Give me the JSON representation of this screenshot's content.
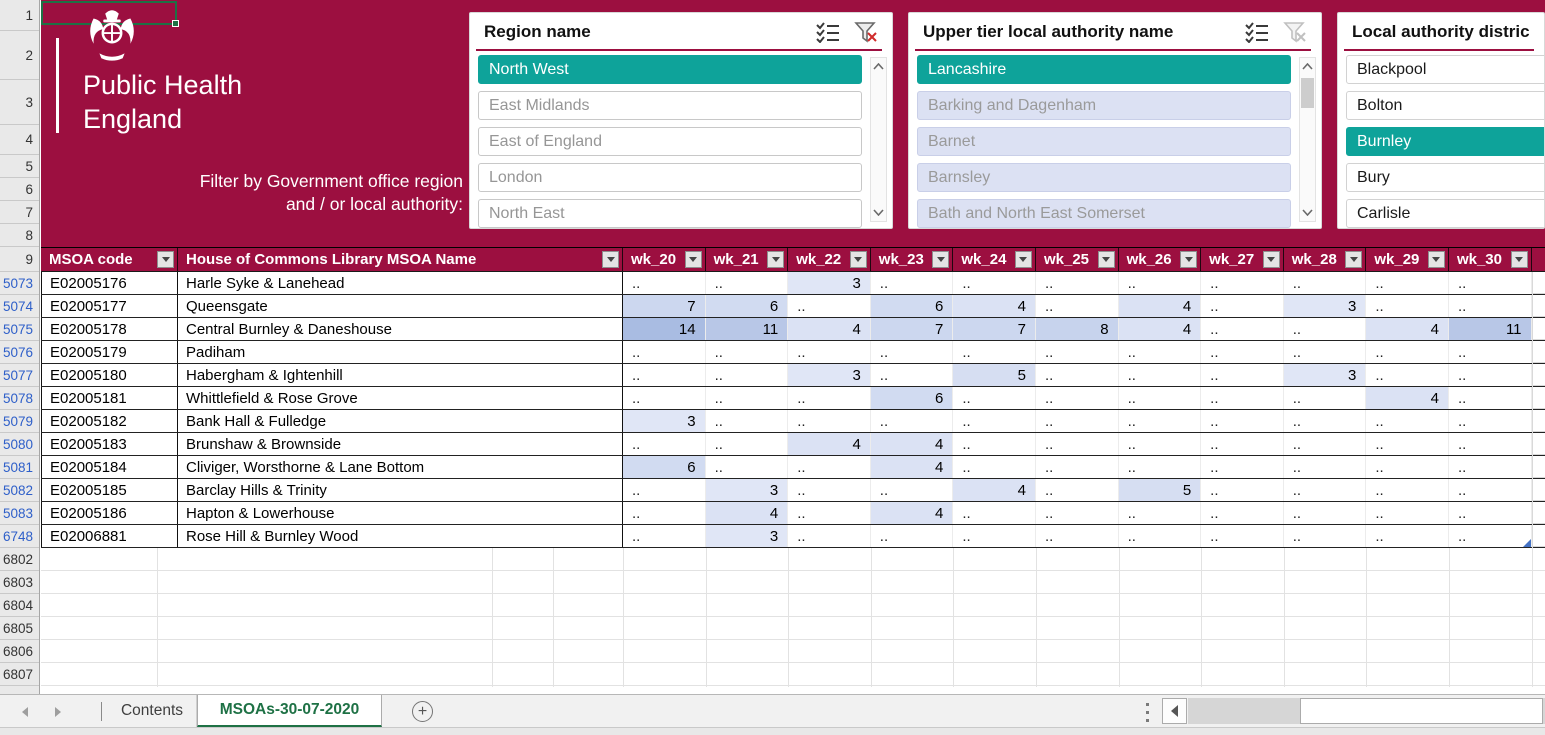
{
  "banner": {
    "logo_line1": "Public Health",
    "logo_line2": "England",
    "caption_line1": "Filter by Government office region",
    "caption_line2": "and / or local authority:"
  },
  "colors": {
    "phe_red": "#9C0F40",
    "slicer_teal": "#0EA39A",
    "active_tab_green": "#1E7145",
    "nodata_fill": "#DCE1F3",
    "heat_low": "#E0E6F6",
    "heat_high": "#A9BCE2",
    "filtered_row_number_blue": "#2E5FC9"
  },
  "slicers": [
    {
      "id": "region",
      "title": "Region name",
      "icons": [
        "multi-select-icon",
        "clear-filter-icon-active"
      ],
      "items": [
        {
          "label": "North West",
          "state": "selected"
        },
        {
          "label": "East Midlands",
          "state": "unselected"
        },
        {
          "label": "East of England",
          "state": "unselected"
        },
        {
          "label": "London",
          "state": "unselected"
        },
        {
          "label": "North East",
          "state": "unselected"
        }
      ]
    },
    {
      "id": "upper-tier",
      "title": "Upper tier local authority name",
      "icons": [
        "multi-select-icon",
        "clear-filter-icon-disabled"
      ],
      "items": [
        {
          "label": "Lancashire",
          "state": "selected"
        },
        {
          "label": "Barking and Dagenham",
          "state": "nodata"
        },
        {
          "label": "Barnet",
          "state": "nodata"
        },
        {
          "label": "Barnsley",
          "state": "nodata"
        },
        {
          "label": "Bath and North East Somerset",
          "state": "nodata"
        }
      ]
    },
    {
      "id": "district",
      "title": "Local authority distric",
      "icons": [],
      "items": [
        {
          "label": "Blackpool",
          "state": "data"
        },
        {
          "label": "Bolton",
          "state": "data"
        },
        {
          "label": "Burnley",
          "state": "selected"
        },
        {
          "label": "Bury",
          "state": "data"
        },
        {
          "label": "Carlisle",
          "state": "data"
        }
      ]
    }
  ],
  "table": {
    "header_row_number": "9",
    "top_row_numbers": [
      "1",
      "2",
      "3",
      "4",
      "5",
      "6",
      "7",
      "8"
    ],
    "columns": [
      "MSOA code",
      "House of Commons Library MSOA Name"
    ],
    "week_columns": [
      "wk_20",
      "wk_21",
      "wk_22",
      "wk_23",
      "wk_24",
      "wk_25",
      "wk_26",
      "wk_27",
      "wk_28",
      "wk_29",
      "wk_30"
    ],
    "rows": [
      {
        "row": "5073",
        "code": "E02005176",
        "name": "Harle Syke & Lanehead",
        "weeks": [
          "..",
          "..",
          "3",
          "..",
          "..",
          "..",
          "..",
          "..",
          "..",
          "..",
          ".."
        ]
      },
      {
        "row": "5074",
        "code": "E02005177",
        "name": "Queensgate",
        "weeks": [
          "7",
          "6",
          "..",
          "6",
          "4",
          "..",
          "4",
          "..",
          "3",
          "..",
          ".."
        ]
      },
      {
        "row": "5075",
        "code": "E02005178",
        "name": "Central Burnley & Daneshouse",
        "weeks": [
          "14",
          "11",
          "4",
          "7",
          "7",
          "8",
          "4",
          "..",
          "..",
          "4",
          "11"
        ]
      },
      {
        "row": "5076",
        "code": "E02005179",
        "name": "Padiham",
        "weeks": [
          "..",
          "..",
          "..",
          "..",
          "..",
          "..",
          "..",
          "..",
          "..",
          "..",
          ".."
        ]
      },
      {
        "row": "5077",
        "code": "E02005180",
        "name": "Habergham & Ightenhill",
        "weeks": [
          "..",
          "..",
          "3",
          "..",
          "5",
          "..",
          "..",
          "..",
          "3",
          "..",
          ".."
        ]
      },
      {
        "row": "5078",
        "code": "E02005181",
        "name": "Whittlefield & Rose Grove",
        "weeks": [
          "..",
          "..",
          "..",
          "6",
          "..",
          "..",
          "..",
          "..",
          "..",
          "4",
          ".."
        ]
      },
      {
        "row": "5079",
        "code": "E02005182",
        "name": "Bank Hall & Fulledge",
        "weeks": [
          "3",
          "..",
          "..",
          "..",
          "..",
          "..",
          "..",
          "..",
          "..",
          "..",
          ".."
        ]
      },
      {
        "row": "5080",
        "code": "E02005183",
        "name": "Brunshaw & Brownside",
        "weeks": [
          "..",
          "..",
          "4",
          "4",
          "..",
          "..",
          "..",
          "..",
          "..",
          "..",
          ".."
        ]
      },
      {
        "row": "5081",
        "code": "E02005184",
        "name": "Cliviger, Worsthorne & Lane Bottom",
        "weeks": [
          "6",
          "..",
          "..",
          "4",
          "..",
          "..",
          "..",
          "..",
          "..",
          "..",
          ".."
        ]
      },
      {
        "row": "5082",
        "code": "E02005185",
        "name": "Barclay Hills & Trinity",
        "weeks": [
          "..",
          "3",
          "..",
          "..",
          "4",
          "..",
          "5",
          "..",
          "..",
          "..",
          ".."
        ]
      },
      {
        "row": "5083",
        "code": "E02005186",
        "name": "Hapton & Lowerhouse",
        "weeks": [
          "..",
          "4",
          "..",
          "4",
          "..",
          "..",
          "..",
          "..",
          "..",
          "..",
          ".."
        ]
      },
      {
        "row": "6748",
        "code": "E02006881",
        "name": "Rose Hill & Burnley Wood",
        "weeks": [
          "..",
          "3",
          "..",
          "..",
          "..",
          "..",
          "..",
          "..",
          "..",
          "..",
          ".."
        ]
      }
    ],
    "empty_row_numbers": [
      "6802",
      "6803",
      "6804",
      "6805",
      "6806",
      "6807"
    ]
  },
  "tabs": {
    "contents_label": "Contents",
    "active_label": "MSOAs-30-07-2020",
    "add_sheet_label": "+"
  }
}
